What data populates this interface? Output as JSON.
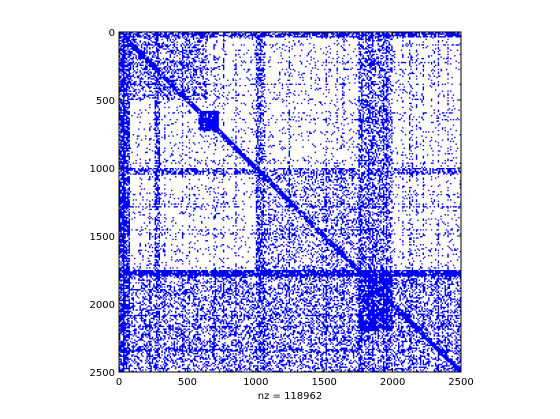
{
  "chart_data": {
    "type": "heatmap",
    "title": "",
    "xlabel": "nz = 118962",
    "ylabel": "",
    "xlim": [
      0,
      2500
    ],
    "ylim": [
      2500,
      0
    ],
    "x_ticks": [
      0,
      500,
      1000,
      1500,
      2000,
      2500
    ],
    "y_ticks": [
      0,
      500,
      1000,
      1500,
      2000,
      2500
    ],
    "x_tick_labels": [
      "0",
      "500",
      "1000",
      "1500",
      "2000",
      "2500"
    ],
    "y_tick_labels": [
      "0",
      "500",
      "1000",
      "1500",
      "2000",
      "2500"
    ],
    "nz": 118962,
    "matrix_size": [
      2500,
      2500
    ],
    "marker_color": "#0000ff",
    "dense_blocks": [
      {
        "rows": [
          0,
          500
        ],
        "cols": [
          0,
          650
        ],
        "density": 0.35
      },
      {
        "rows": [
          580,
          730
        ],
        "cols": [
          580,
          730
        ],
        "density": 0.9
      },
      {
        "rows": [
          0,
          2500
        ],
        "cols": [
          1750,
          2000
        ],
        "density": 0.4
      },
      {
        "rows": [
          1750,
          2500
        ],
        "cols": [
          0,
          2500
        ],
        "density": 0.35
      },
      {
        "rows": [
          1750,
          2200
        ],
        "cols": [
          1750,
          2000
        ],
        "density": 0.8
      },
      {
        "rows": [
          1000,
          1800
        ],
        "cols": [
          1050,
          1750
        ],
        "density": 0.25
      }
    ],
    "dense_columns": [
      {
        "cols": [
          0,
          80
        ],
        "density": 0.7
      },
      {
        "cols": [
          260,
          300
        ],
        "density": 0.5
      },
      {
        "cols": [
          1000,
          1050
        ],
        "density": 0.55
      },
      {
        "cols": [
          1750,
          1780
        ],
        "density": 0.6
      }
    ],
    "dense_rows": [
      {
        "rows": [
          0,
          40
        ],
        "density": 0.7
      },
      {
        "rows": [
          1000,
          1050
        ],
        "density": 0.5
      },
      {
        "rows": [
          1750,
          1800
        ],
        "density": 0.85
      }
    ],
    "diagonal_band_width": 30
  }
}
